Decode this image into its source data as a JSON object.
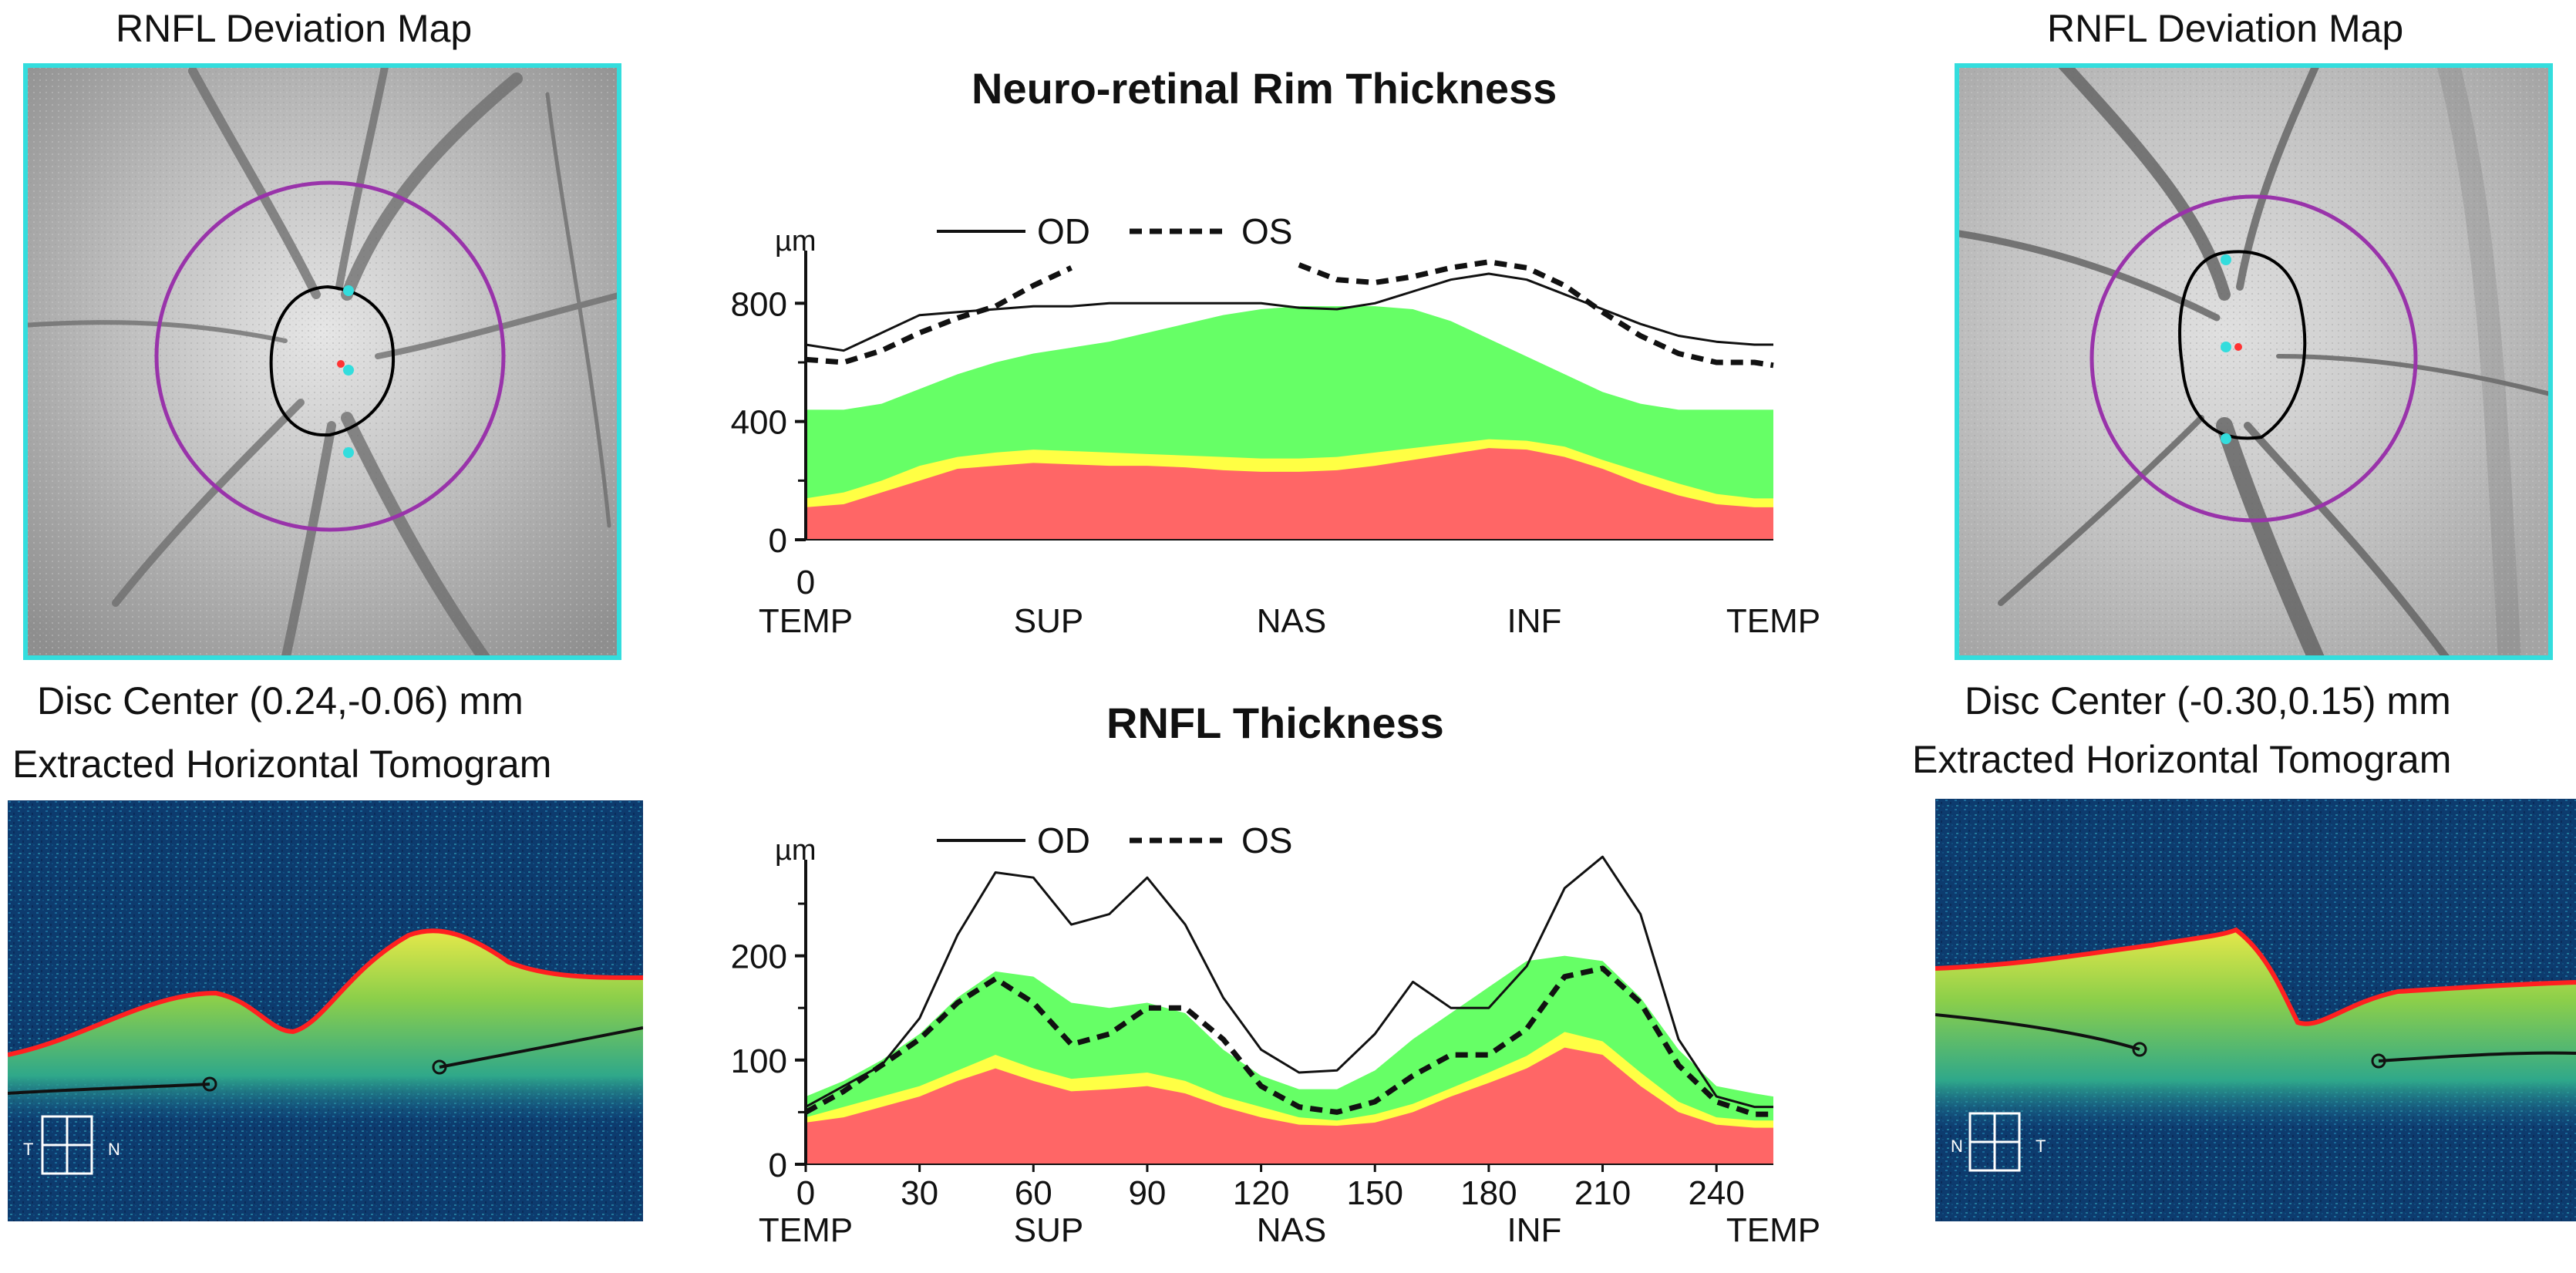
{
  "left": {
    "map_title": "RNFL Deviation Map",
    "disc_center": "Disc Center  (0.24,-0.06) mm",
    "tomogram_title": "Extracted Horizontal Tomogram",
    "tomo_orientation": [
      "T",
      "N"
    ]
  },
  "right": {
    "map_title": "RNFL Deviation Map",
    "disc_center": "Disc Center  (-0.30,0.15) mm",
    "tomogram_title": "Extracted Horizontal Tomogram",
    "tomo_orientation": [
      "N",
      "T"
    ]
  },
  "colors": {
    "normal": "#66ff66",
    "borderline": "#ffff44",
    "abnormal": "#ff6666",
    "frame": "#33dddd",
    "ring": "#9933aa"
  },
  "chart_data": [
    {
      "type": "line",
      "title": "Neuro-retinal Rim Thickness",
      "ylabel": "µm",
      "xlabel": "",
      "ylim": [
        0,
        900
      ],
      "xlim": [
        0,
        255
      ],
      "yticks": [
        "0",
        "400",
        "800"
      ],
      "xticks": [
        {
          "pos": 0,
          "label": "0"
        }
      ],
      "sector_labels": [
        {
          "pos": 0,
          "label": "TEMP"
        },
        {
          "pos": 64,
          "label": "SUP"
        },
        {
          "pos": 128,
          "label": "NAS"
        },
        {
          "pos": 192,
          "label": "INF"
        },
        {
          "pos": 255,
          "label": "TEMP"
        }
      ],
      "legend": [
        {
          "name": "OD",
          "style": "solid"
        },
        {
          "name": "OS",
          "style": "dashed"
        }
      ],
      "x": [
        0,
        10,
        20,
        30,
        40,
        50,
        60,
        70,
        80,
        90,
        100,
        110,
        120,
        130,
        140,
        150,
        160,
        170,
        180,
        190,
        200,
        210,
        220,
        230,
        240,
        250,
        255
      ],
      "bands": {
        "abnormal_upper": [
          110,
          120,
          160,
          200,
          240,
          250,
          260,
          255,
          250,
          250,
          245,
          235,
          230,
          230,
          235,
          250,
          270,
          290,
          310,
          305,
          280,
          240,
          190,
          150,
          120,
          110,
          110
        ],
        "borderline_upper": [
          140,
          160,
          200,
          250,
          280,
          295,
          305,
          300,
          295,
          290,
          285,
          280,
          275,
          275,
          280,
          295,
          310,
          325,
          340,
          335,
          315,
          270,
          230,
          190,
          155,
          140,
          140
        ],
        "normal_upper": [
          440,
          440,
          460,
          510,
          560,
          600,
          630,
          650,
          670,
          700,
          730,
          760,
          780,
          790,
          790,
          790,
          780,
          740,
          680,
          620,
          560,
          500,
          460,
          440,
          440,
          440,
          440
        ]
      },
      "series": [
        {
          "name": "OD",
          "style": "solid",
          "values": [
            660,
            640,
            700,
            760,
            770,
            780,
            790,
            790,
            800,
            800,
            800,
            800,
            800,
            785,
            780,
            800,
            840,
            880,
            900,
            880,
            830,
            780,
            730,
            690,
            670,
            660,
            660
          ]
        },
        {
          "name": "OS",
          "style": "dashed",
          "values": [
            610,
            600,
            640,
            700,
            750,
            790,
            860,
            920,
            null,
            null,
            null,
            null,
            null,
            930,
            880,
            870,
            890,
            920,
            940,
            920,
            860,
            770,
            690,
            630,
            600,
            600,
            590
          ]
        }
      ]
    },
    {
      "type": "line",
      "title": "RNFL Thickness",
      "ylabel": "µm",
      "xlabel": "",
      "ylim": [
        0,
        270
      ],
      "xlim": [
        0,
        255
      ],
      "yticks": [
        "0",
        "100",
        "200"
      ],
      "xticks": [
        {
          "pos": 0,
          "label": "0"
        },
        {
          "pos": 30,
          "label": "30"
        },
        {
          "pos": 60,
          "label": "60"
        },
        {
          "pos": 90,
          "label": "90"
        },
        {
          "pos": 120,
          "label": "120"
        },
        {
          "pos": 150,
          "label": "150"
        },
        {
          "pos": 180,
          "label": "180"
        },
        {
          "pos": 210,
          "label": "210"
        },
        {
          "pos": 240,
          "label": "240"
        }
      ],
      "sector_labels": [
        {
          "pos": 0,
          "label": "TEMP"
        },
        {
          "pos": 64,
          "label": "SUP"
        },
        {
          "pos": 128,
          "label": "NAS"
        },
        {
          "pos": 192,
          "label": "INF"
        },
        {
          "pos": 255,
          "label": "TEMP"
        }
      ],
      "legend": [
        {
          "name": "OD",
          "style": "solid"
        },
        {
          "name": "OS",
          "style": "dashed"
        }
      ],
      "x": [
        0,
        10,
        20,
        30,
        40,
        50,
        60,
        70,
        80,
        90,
        100,
        110,
        120,
        130,
        140,
        150,
        160,
        170,
        180,
        190,
        200,
        210,
        220,
        230,
        240,
        250,
        255
      ],
      "bands": {
        "abnormal_upper": [
          40,
          45,
          55,
          65,
          80,
          92,
          80,
          70,
          72,
          75,
          68,
          55,
          45,
          38,
          37,
          40,
          50,
          65,
          78,
          92,
          112,
          105,
          75,
          50,
          38,
          35,
          35
        ],
        "borderline_upper": [
          45,
          55,
          65,
          75,
          90,
          105,
          92,
          82,
          85,
          88,
          80,
          65,
          55,
          45,
          42,
          48,
          58,
          73,
          88,
          104,
          127,
          118,
          88,
          60,
          45,
          42,
          42
        ],
        "normal_upper": [
          65,
          80,
          100,
          125,
          160,
          185,
          180,
          155,
          150,
          155,
          145,
          110,
          85,
          72,
          72,
          90,
          120,
          145,
          170,
          195,
          200,
          195,
          160,
          110,
          75,
          68,
          65
        ]
      },
      "series": [
        {
          "name": "OD",
          "style": "solid",
          "values": [
            55,
            75,
            95,
            140,
            220,
            280,
            275,
            230,
            240,
            275,
            230,
            160,
            110,
            88,
            90,
            125,
            175,
            150,
            150,
            190,
            265,
            295,
            240,
            120,
            65,
            55,
            55
          ]
        },
        {
          "name": "OS",
          "style": "dashed",
          "values": [
            50,
            70,
            95,
            120,
            155,
            178,
            155,
            115,
            125,
            150,
            150,
            120,
            75,
            55,
            50,
            60,
            85,
            105,
            105,
            130,
            180,
            188,
            155,
            95,
            60,
            48,
            48
          ]
        }
      ]
    }
  ]
}
